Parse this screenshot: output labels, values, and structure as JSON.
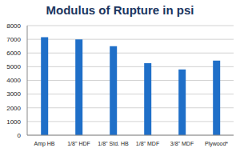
{
  "chart_data": {
    "type": "bar",
    "title": "Modulus of Rupture in psi",
    "categories": [
      "Amp HB",
      "1/8\" HDF",
      "1/8\" Std. HB",
      "1/8\" MDF",
      "3/8\" MDF",
      "Plywood*"
    ],
    "values": [
      7150,
      7000,
      6500,
      5250,
      4800,
      5450
    ],
    "color": "#1f6fc8",
    "ylim": [
      0,
      8000
    ],
    "yticks": [
      0,
      1000,
      2000,
      3000,
      4000,
      5000,
      6000,
      7000,
      8000
    ],
    "grid": true
  }
}
